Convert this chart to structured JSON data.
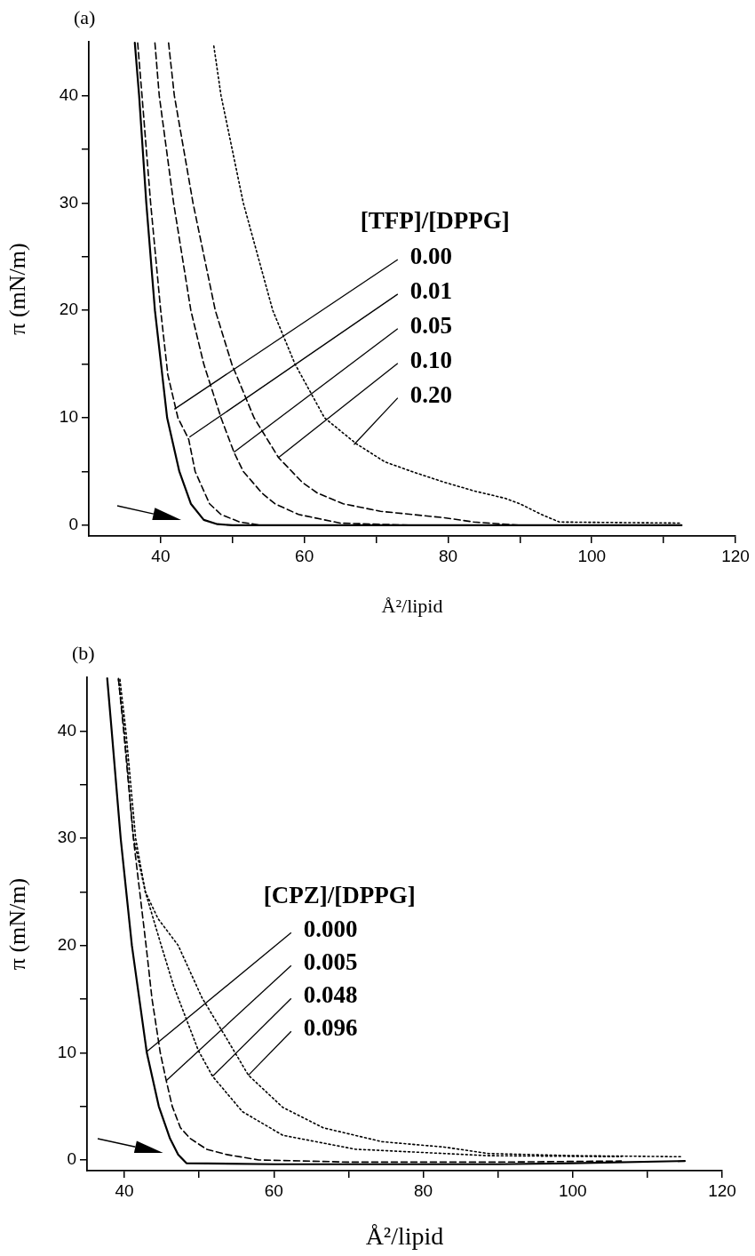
{
  "chart_data": [
    {
      "type": "line",
      "title": "(a)",
      "xlabel": "Å²/lipid",
      "ylabel": "π (mN/m)",
      "legend_title": "[TFP]/[DPPG]",
      "xlim": [
        30,
        120
      ],
      "ylim": [
        -1,
        45
      ],
      "xticks": [
        40,
        {
          "value": 50,
          "label": null
        },
        60,
        {
          "value": 70,
          "label": null
        },
        80,
        {
          "value": 90,
          "label": null
        },
        100,
        {
          "value": 110,
          "label": null
        },
        120
      ],
      "yticks": [
        0,
        {
          "value": 5,
          "label": null
        },
        10,
        {
          "value": 15,
          "label": null
        },
        20,
        {
          "value": 25,
          "label": null
        },
        30,
        {
          "value": 35,
          "label": null
        },
        40
      ],
      "grid": false,
      "legend": false,
      "marker": "none",
      "series": [
        {
          "color": "#000000",
          "line_style": "solid",
          "x": [
            36.4,
            37.0,
            38.0,
            39.2,
            40.9,
            42.6,
            44.2,
            46.0,
            47.9,
            50,
            60,
            80,
            100,
            112.5
          ],
          "values": [
            44.9,
            40,
            30,
            20,
            10,
            5,
            2,
            0.5,
            0.1,
            0,
            0,
            0,
            0,
            0
          ]
        },
        {
          "color": "#000000",
          "line_style": "dashed",
          "x": [
            36.8,
            37.4,
            38.6,
            40.0,
            41.0,
            42.4,
            43.9,
            44.8,
            46.8,
            48.4,
            51,
            54,
            70,
            112.5
          ],
          "values": [
            44.9,
            40,
            30,
            20,
            14,
            10,
            8,
            5,
            2,
            1,
            0.3,
            0,
            0,
            0
          ]
        },
        {
          "color": "#000000",
          "line_style": "dashed",
          "x": [
            39.2,
            39.8,
            41.8,
            44.2,
            46.0,
            48.4,
            50.2,
            51.5,
            54.1,
            55.9,
            59.2,
            65,
            75,
            112.5
          ],
          "values": [
            44.9,
            40,
            30,
            20,
            15,
            10,
            6.8,
            5,
            3,
            2,
            1,
            0.2,
            0,
            0
          ]
        },
        {
          "color": "#000000",
          "line_style": "dashed",
          "x": [
            41.1,
            41.9,
            44.5,
            47.6,
            49.9,
            53.0,
            56.4,
            59.7,
            61.8,
            65.4,
            70.6,
            79.5,
            83.6,
            90,
            112.5
          ],
          "values": [
            44.9,
            40,
            30,
            20,
            15,
            10,
            6.3,
            4,
            3,
            2,
            1.3,
            0.7,
            0.3,
            0,
            0
          ]
        },
        {
          "color": "#000000",
          "line_style": "dotted",
          "x": [
            47.4,
            48.4,
            51.5,
            55.6,
            58.7,
            62.8,
            67.2,
            71.2,
            75.4,
            79.5,
            83.6,
            88,
            90,
            93,
            95.5,
            112.5
          ],
          "values": [
            44.6,
            40,
            30,
            20,
            15,
            10,
            7.6,
            5.9,
            4.9,
            4.0,
            3.2,
            2.5,
            2.0,
            1.0,
            0.3,
            0.2
          ]
        }
      ],
      "annotations": [
        {
          "text": "0.00",
          "x": 41.9,
          "y": 10.8
        },
        {
          "text": "0.01",
          "x": 44.0,
          "y": 8.2
        },
        {
          "text": "0.05",
          "x": 50.2,
          "y": 6.8
        },
        {
          "text": "0.10",
          "x": 56.4,
          "y": 6.3
        },
        {
          "text": "0.20",
          "x": 66.9,
          "y": 7.5
        }
      ]
    },
    {
      "type": "line",
      "title": "(b)",
      "xlabel": "Å²/lipid",
      "ylabel": "π (mN/m)",
      "legend_title": "[CPZ]/[DPPG]",
      "xlim": [
        35,
        120
      ],
      "ylim": [
        -1,
        45
      ],
      "xticks": [
        40,
        {
          "value": 50,
          "label": null
        },
        60,
        {
          "value": 70,
          "label": null
        },
        80,
        {
          "value": 90,
          "label": null
        },
        100,
        {
          "value": 110,
          "label": null
        },
        120
      ],
      "yticks": [
        0,
        {
          "value": 5,
          "label": null
        },
        10,
        {
          "value": 15,
          "label": null
        },
        20,
        {
          "value": 25,
          "label": null
        },
        30,
        {
          "value": 35,
          "label": null
        },
        40
      ],
      "grid": false,
      "legend": false,
      "marker": "none",
      "series": [
        {
          "color": "#000000",
          "line_style": "solid",
          "x": [
            37.7,
            38.3,
            39.5,
            41.0,
            43.0,
            44.6,
            46.1,
            47.2,
            48.3,
            60,
            80,
            90,
            100,
            115
          ],
          "values": [
            44.9,
            40,
            30,
            20,
            10,
            5,
            2,
            0.5,
            -0.3,
            -0.4,
            -0.4,
            -0.4,
            -0.3,
            -0.1
          ]
        },
        {
          "color": "#000000",
          "line_style": "dashed",
          "x": [
            39.2,
            39.9,
            41.2,
            42.9,
            43.7,
            44.8,
            45.6,
            46.4,
            47.5,
            48.8,
            51.0,
            53.7,
            58.0,
            70,
            90,
            106.5
          ],
          "values": [
            44.9,
            40,
            30,
            20,
            15,
            10,
            7.4,
            5,
            3,
            2,
            1,
            0.5,
            0,
            -0.2,
            -0.2,
            -0.1
          ]
        },
        {
          "color": "#000000",
          "line_style": "dotted",
          "x": [
            39.2,
            40,
            41.2,
            42.8,
            44.8,
            46.6,
            49.9,
            51.8,
            55.8,
            61.2,
            70.9,
            82.8,
            88.7,
            106.5
          ],
          "values": [
            44.8,
            40,
            30.1,
            25,
            20.3,
            16.2,
            10.2,
            7.8,
            4.5,
            2.3,
            1.0,
            0.6,
            0.4,
            0.3
          ]
        },
        {
          "color": "#000000",
          "line_style": "dotted",
          "x": [
            39.4,
            40.2,
            41.5,
            42.8,
            44.5,
            47.2,
            50.4,
            53.7,
            56.6,
            61.2,
            66.6,
            74.5,
            82.8,
            88.7,
            100,
            114.5
          ],
          "values": [
            44.8,
            40,
            30,
            25,
            22.5,
            20,
            15.1,
            11.3,
            7.9,
            4.9,
            3.0,
            1.7,
            1.2,
            0.6,
            0.4,
            0.3
          ]
        }
      ],
      "annotations": [
        {
          "text": "0.000",
          "x": 43.0,
          "y": 10.1
        },
        {
          "text": "0.005",
          "x": 45.6,
          "y": 7.4
        },
        {
          "text": "0.048",
          "x": 51.8,
          "y": 7.8
        },
        {
          "text": "0.096",
          "x": 56.6,
          "y": 7.9
        }
      ]
    }
  ]
}
